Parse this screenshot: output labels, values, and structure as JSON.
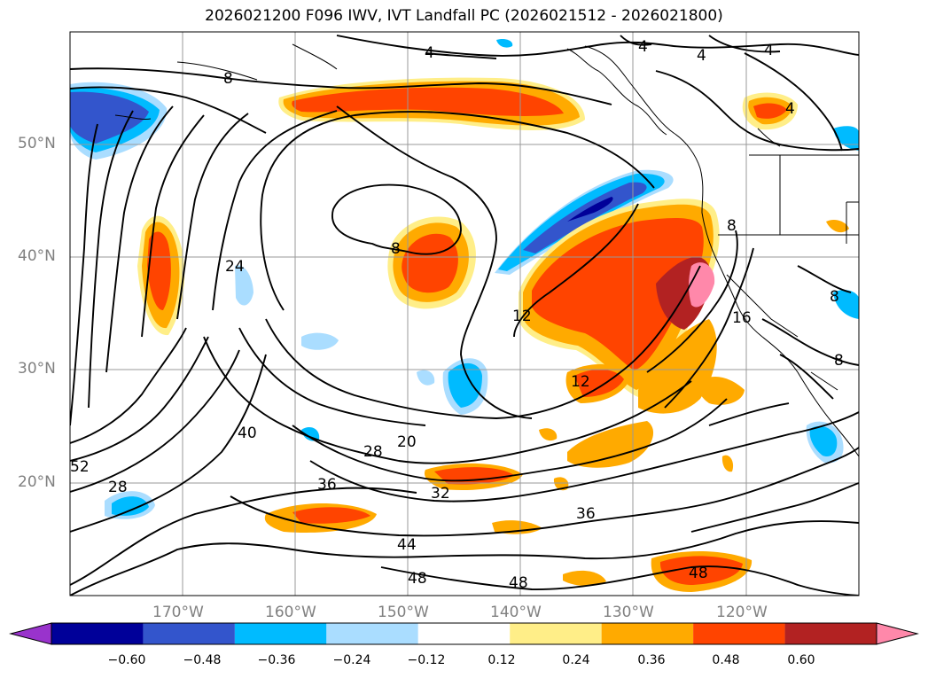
{
  "title": "2026021200 F096 IWV, IVT Landfall PC (2026021512 - 2026021800)",
  "latitude_labels": [
    "50°N",
    "40°N",
    "30°N",
    "20°N"
  ],
  "longitude_labels": [
    "170°W",
    "160°W",
    "150°W",
    "140°W",
    "130°W",
    "120°W"
  ],
  "contour_labels": [
    "4",
    "4",
    "4",
    "4",
    "4",
    "8",
    "8",
    "8",
    "8",
    "8",
    "12",
    "12",
    "16",
    "20",
    "24",
    "28",
    "28",
    "32",
    "36",
    "36",
    "40",
    "44",
    "48",
    "48",
    "48",
    "52"
  ],
  "colorbar": {
    "ticks": [
      "−0.60",
      "−0.48",
      "−0.36",
      "−0.24",
      "−0.12",
      "0.12",
      "0.24",
      "0.36",
      "0.48",
      "0.60"
    ],
    "colors": [
      "#9933cc",
      "#000099",
      "#3355cc",
      "#00bbff",
      "#aaddff",
      "#ffffff",
      "#ffee88",
      "#ffaa00",
      "#ff4400",
      "#b22222",
      "#ff88aa"
    ]
  },
  "colors": {
    "land_outline": "#000000",
    "grid": "#999999",
    "contour": "#000000"
  }
}
